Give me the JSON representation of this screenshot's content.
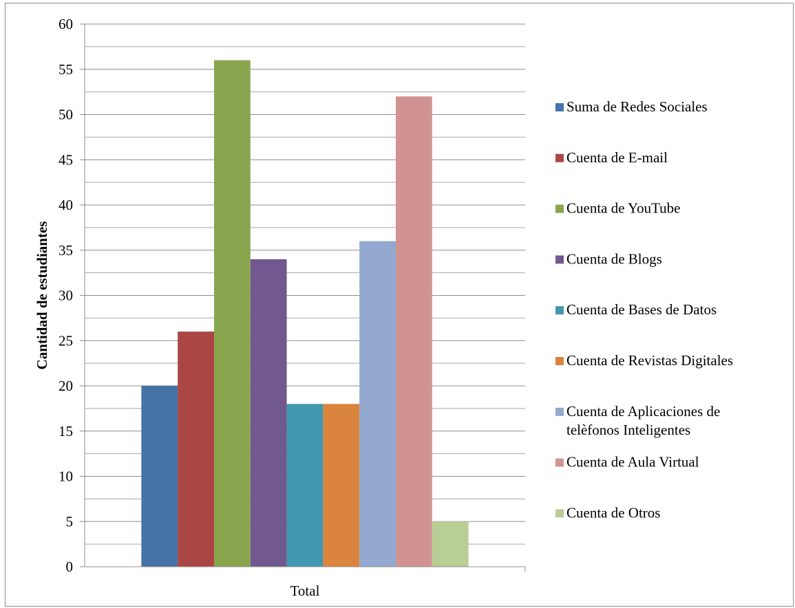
{
  "chart_data": {
    "type": "bar",
    "categories": [
      "Total"
    ],
    "ylabel": "Cantidad de estudiantes",
    "xlabel": "",
    "ylim": [
      0,
      60
    ],
    "yticks": [
      0,
      5,
      10,
      15,
      20,
      25,
      30,
      35,
      40,
      45,
      50,
      55,
      60
    ],
    "minor_gridlines": true,
    "legend_position": "right",
    "series": [
      {
        "name": "Suma de Redes Sociales",
        "values": [
          20
        ],
        "color": "#4572A7"
      },
      {
        "name": "Cuenta de E-mail",
        "values": [
          26
        ],
        "color": "#AA4643"
      },
      {
        "name": "Cuenta de YouTube",
        "values": [
          56
        ],
        "color": "#89A54E"
      },
      {
        "name": "Cuenta de Blogs",
        "values": [
          34
        ],
        "color": "#71588F"
      },
      {
        "name": "Cuenta de Bases de Datos",
        "values": [
          18
        ],
        "color": "#4198AF"
      },
      {
        "name": "Cuenta de Revistas Digitales",
        "values": [
          18
        ],
        "color": "#DB843D"
      },
      {
        "name": "Cuenta de Aplicaciones de telèfonos Inteligentes",
        "values": [
          36
        ],
        "color": "#93A9CF"
      },
      {
        "name": "Cuenta de Aula Virtual",
        "values": [
          52
        ],
        "color": "#D19392"
      },
      {
        "name": "Cuenta de Otros",
        "values": [
          5
        ],
        "color": "#B9CD96"
      }
    ]
  }
}
